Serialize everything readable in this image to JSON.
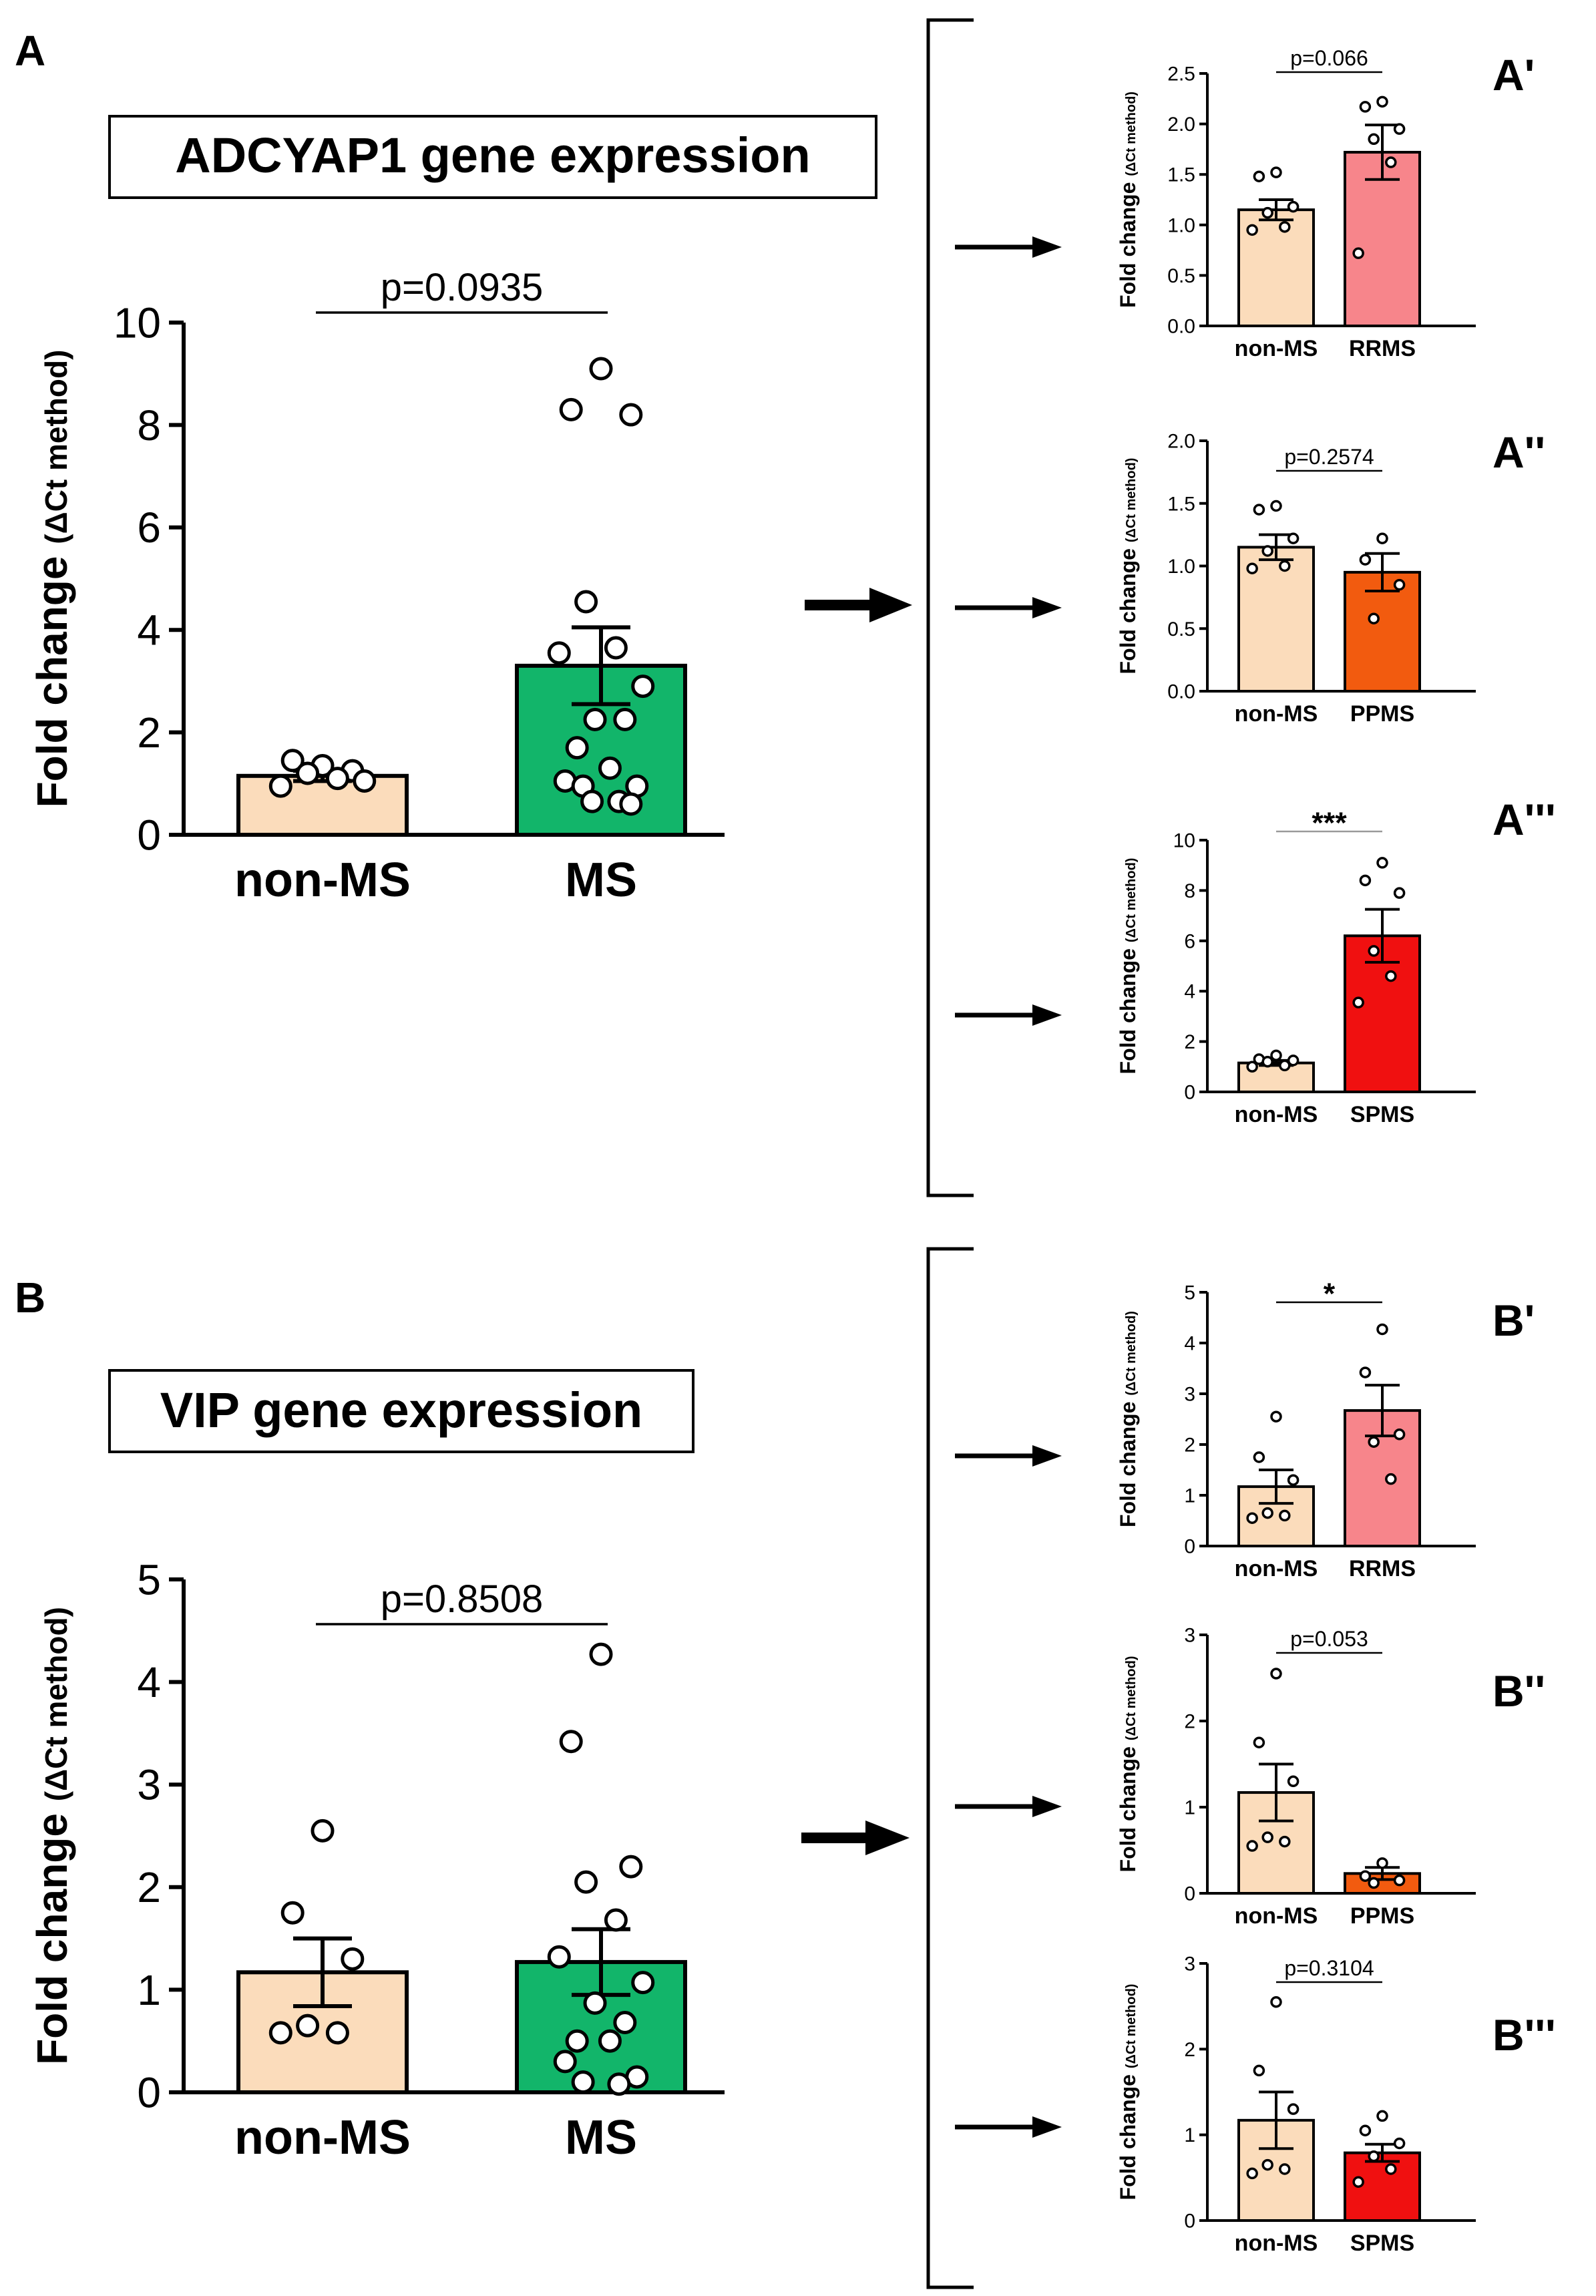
{
  "colors": {
    "nonms": "#fbdcbb",
    "ms": "#12b56a",
    "rrms": "#f7858b",
    "ppms": "#f25b0f",
    "spms": "#f01010",
    "ink": "#000000"
  },
  "sections": [
    {
      "id": "A",
      "letter": "A",
      "title": "ADCYAP1 gene expression"
    },
    {
      "id": "B",
      "letter": "B",
      "title": "VIP gene expression"
    }
  ],
  "chart_data": [
    {
      "id": "A",
      "type": "bar",
      "panel": "A",
      "title": "ADCYAP1 gene expression",
      "ylabel_main": "Fold change",
      "ylabel_sub": "(ΔCt method)",
      "categories": [
        "non-MS",
        "MS"
      ],
      "color_keys": [
        "nonms",
        "ms"
      ],
      "values": [
        1.15,
        3.3
      ],
      "sem": [
        0.1,
        0.75
      ],
      "points": [
        [
          1.35,
          1.45,
          1.25,
          1.2,
          1.1,
          0.95,
          1.05
        ],
        [
          9.1,
          8.3,
          8.2,
          4.55,
          3.65,
          3.55,
          2.9,
          2.25,
          2.25,
          1.7,
          1.3,
          1.05,
          0.95,
          0.95,
          0.65,
          0.65,
          0.6
        ]
      ],
      "ylim": [
        0,
        10
      ],
      "yticks": [
        0,
        2,
        4,
        6,
        8,
        10
      ],
      "sig": "p=0.0935",
      "sig_grey": false
    },
    {
      "id": "A1",
      "type": "bar",
      "panel": "A'",
      "title": "",
      "ylabel_main": "Fold change",
      "ylabel_sub": "(ΔCt method)",
      "categories": [
        "non-MS",
        "RRMS"
      ],
      "color_keys": [
        "nonms",
        "rrms"
      ],
      "values": [
        1.15,
        1.72
      ],
      "sem": [
        0.1,
        0.27
      ],
      "points": [
        [
          1.52,
          1.48,
          1.18,
          1.12,
          0.98,
          0.95
        ],
        [
          2.22,
          2.17,
          1.95,
          1.85,
          1.62,
          0.72
        ]
      ],
      "ylim": [
        0,
        2.5
      ],
      "yticks": [
        0.0,
        0.5,
        1.0,
        1.5,
        2.0,
        2.5
      ],
      "ytick_labels": [
        "0.0",
        "0.5",
        "1.0",
        "1.5",
        "2.0",
        "2.5"
      ],
      "sig": "p=0.066",
      "sig_grey": false
    },
    {
      "id": "A2",
      "type": "bar",
      "panel": "A''",
      "title": "",
      "ylabel_main": "Fold change",
      "ylabel_sub": "(ΔCt method)",
      "categories": [
        "non-MS",
        "PPMS"
      ],
      "color_keys": [
        "nonms",
        "ppms"
      ],
      "values": [
        1.15,
        0.95
      ],
      "sem": [
        0.1,
        0.15
      ],
      "points": [
        [
          1.48,
          1.45,
          1.22,
          1.12,
          1.0,
          0.98
        ],
        [
          1.22,
          1.05,
          0.85,
          0.58
        ]
      ],
      "ylim": [
        0,
        2.0
      ],
      "yticks": [
        0.0,
        0.5,
        1.0,
        1.5,
        2.0
      ],
      "ytick_labels": [
        "0.0",
        "0.5",
        "1.0",
        "1.5",
        "2.0"
      ],
      "sig": "p=0.2574",
      "sig_grey": false
    },
    {
      "id": "A3",
      "type": "bar",
      "panel": "A'''",
      "title": "",
      "ylabel_main": "Fold change",
      "ylabel_sub": "(ΔCt method)",
      "categories": [
        "non-MS",
        "SPMS"
      ],
      "color_keys": [
        "nonms",
        "spms"
      ],
      "values": [
        1.15,
        6.2
      ],
      "sem": [
        0.1,
        1.05
      ],
      "points": [
        [
          1.45,
          1.3,
          1.25,
          1.2,
          1.05,
          1.0
        ],
        [
          9.1,
          8.4,
          7.9,
          5.6,
          4.6,
          3.55
        ]
      ],
      "ylim": [
        0,
        10
      ],
      "yticks": [
        0,
        2,
        4,
        6,
        8,
        10
      ],
      "sig": "***",
      "sig_grey": true
    },
    {
      "id": "B",
      "type": "bar",
      "panel": "B",
      "title": "VIP gene expression",
      "ylabel_main": "Fold change",
      "ylabel_sub": "(ΔCt method)",
      "categories": [
        "non-MS",
        "MS"
      ],
      "color_keys": [
        "nonms",
        "ms"
      ],
      "values": [
        1.17,
        1.27
      ],
      "sem": [
        0.33,
        0.32
      ],
      "points": [
        [
          2.55,
          1.75,
          1.3,
          0.65,
          0.58,
          0.58
        ],
        [
          4.27,
          3.42,
          2.2,
          2.05,
          1.68,
          1.32,
          1.07,
          0.87,
          0.68,
          0.5,
          0.5,
          0.3,
          0.15,
          0.1,
          0.08
        ]
      ],
      "ylim": [
        0,
        5
      ],
      "yticks": [
        0,
        1,
        2,
        3,
        4,
        5
      ],
      "sig": "p=0.8508",
      "sig_grey": false
    },
    {
      "id": "B1",
      "type": "bar",
      "panel": "B'",
      "title": "",
      "ylabel_main": "Fold change",
      "ylabel_sub": "(ΔCt method)",
      "categories": [
        "non-MS",
        "RRMS"
      ],
      "color_keys": [
        "nonms",
        "rrms"
      ],
      "values": [
        1.17,
        2.67
      ],
      "sem": [
        0.33,
        0.5
      ],
      "points": [
        [
          2.55,
          1.75,
          1.3,
          0.65,
          0.6,
          0.55
        ],
        [
          4.27,
          3.42,
          2.2,
          2.05,
          1.32
        ]
      ],
      "ylim": [
        0,
        5
      ],
      "yticks": [
        0,
        1,
        2,
        3,
        4,
        5
      ],
      "sig": "*",
      "sig_grey": false
    },
    {
      "id": "B2",
      "type": "bar",
      "panel": "B''",
      "title": "",
      "ylabel_main": "Fold change",
      "ylabel_sub": "(ΔCt method)",
      "categories": [
        "non-MS",
        "PPMS"
      ],
      "color_keys": [
        "nonms",
        "ppms"
      ],
      "values": [
        1.17,
        0.23
      ],
      "sem": [
        0.33,
        0.07
      ],
      "points": [
        [
          2.55,
          1.75,
          1.3,
          0.65,
          0.6,
          0.55
        ],
        [
          0.35,
          0.2,
          0.15,
          0.12
        ]
      ],
      "ylim": [
        0,
        3
      ],
      "yticks": [
        0,
        1,
        2,
        3
      ],
      "sig": "p=0.053",
      "sig_grey": false
    },
    {
      "id": "B3",
      "type": "bar",
      "panel": "B'''",
      "title": "",
      "ylabel_main": "Fold change",
      "ylabel_sub": "(ΔCt method)",
      "categories": [
        "non-MS",
        "SPMS"
      ],
      "color_keys": [
        "nonms",
        "spms"
      ],
      "values": [
        1.17,
        0.79
      ],
      "sem": [
        0.33,
        0.1
      ],
      "points": [
        [
          2.55,
          1.75,
          1.3,
          0.65,
          0.6,
          0.55
        ],
        [
          1.22,
          1.05,
          0.9,
          0.75,
          0.6,
          0.45
        ]
      ],
      "ylim": [
        0,
        3
      ],
      "yticks": [
        0,
        1,
        2,
        3
      ],
      "sig": "p=0.3104",
      "sig_grey": false
    }
  ]
}
